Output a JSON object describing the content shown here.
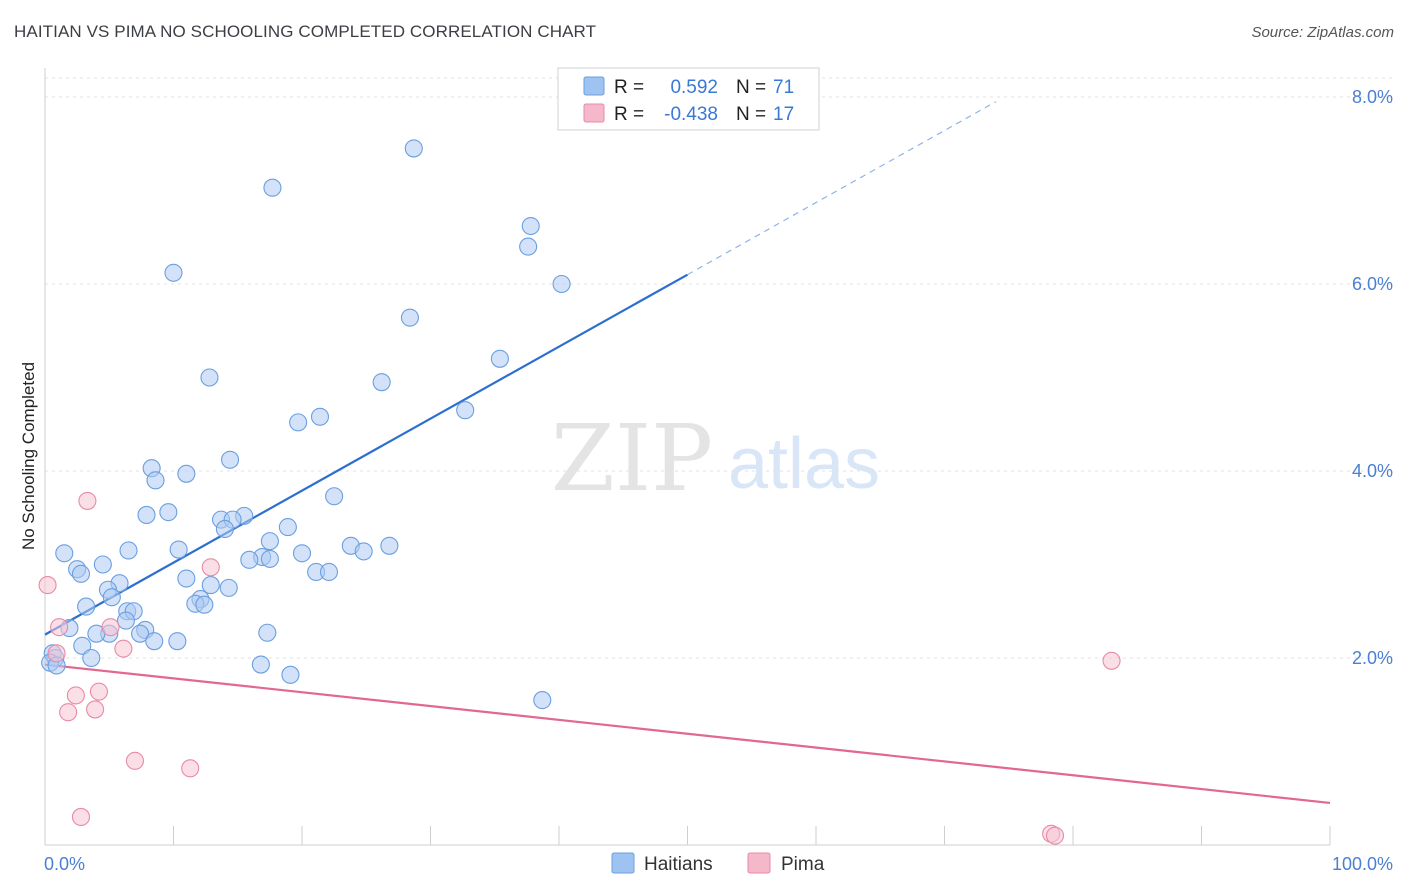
{
  "header": {
    "title": "HAITIAN VS PIMA NO SCHOOLING COMPLETED CORRELATION CHART",
    "source": "Source: ZipAtlas.com"
  },
  "watermark": {
    "zip": "ZIP",
    "atlas": "atlas"
  },
  "legend": {
    "rows": [
      {
        "r_label": "R =",
        "r_value": "0.592",
        "n_label": "N =",
        "n_value": "71",
        "color": "#9fc3f0"
      },
      {
        "r_label": "R =",
        "r_value": "-0.438",
        "n_label": "N =",
        "n_value": "17",
        "color": "#f5b8cb"
      }
    ]
  },
  "chart_data": {
    "type": "scatter",
    "title": "HAITIAN VS PIMA NO SCHOOLING COMPLETED CORRELATION CHART",
    "xlabel": "",
    "ylabel": "No Schooling Completed",
    "xlim": [
      0,
      100
    ],
    "ylim": [
      0,
      8
    ],
    "x_tick_labels": [
      "0.0%",
      "100.0%"
    ],
    "y_ticks": [
      2,
      4,
      6,
      8
    ],
    "y_tick_labels": [
      "2.0%",
      "4.0%",
      "6.0%",
      "8.0%"
    ],
    "grid": true,
    "legend_position": "bottom-center",
    "series": [
      {
        "name": "Haitians",
        "color": "#6a9fe0",
        "fill": "#aecbf2",
        "trend": {
          "x0": 0,
          "y0": 2.25,
          "x1": 50,
          "y1": 6.1,
          "dashed_to_x": 74,
          "dashed_to_y": 7.95,
          "color": "#2d6fcf"
        },
        "points": [
          [
            28.7,
            7.45
          ],
          [
            17.7,
            7.03
          ],
          [
            37.8,
            6.62
          ],
          [
            37.6,
            6.4
          ],
          [
            40.2,
            6.0
          ],
          [
            10.0,
            6.12
          ],
          [
            28.4,
            5.64
          ],
          [
            35.4,
            5.2
          ],
          [
            12.8,
            5.0
          ],
          [
            26.2,
            4.95
          ],
          [
            32.7,
            4.65
          ],
          [
            21.4,
            4.58
          ],
          [
            19.7,
            4.52
          ],
          [
            14.4,
            4.12
          ],
          [
            8.3,
            4.03
          ],
          [
            11.0,
            3.97
          ],
          [
            8.6,
            3.9
          ],
          [
            22.5,
            3.73
          ],
          [
            9.6,
            3.56
          ],
          [
            7.9,
            3.53
          ],
          [
            15.5,
            3.52
          ],
          [
            13.7,
            3.48
          ],
          [
            14.6,
            3.48
          ],
          [
            23.8,
            3.2
          ],
          [
            18.9,
            3.4
          ],
          [
            14.0,
            3.38
          ],
          [
            26.8,
            3.2
          ],
          [
            17.5,
            3.25
          ],
          [
            20.0,
            3.12
          ],
          [
            24.8,
            3.14
          ],
          [
            1.5,
            3.12
          ],
          [
            10.4,
            3.16
          ],
          [
            6.5,
            3.15
          ],
          [
            16.9,
            3.08
          ],
          [
            15.9,
            3.05
          ],
          [
            17.5,
            3.06
          ],
          [
            4.5,
            3.0
          ],
          [
            2.5,
            2.95
          ],
          [
            2.8,
            2.9
          ],
          [
            21.1,
            2.92
          ],
          [
            22.1,
            2.92
          ],
          [
            11.0,
            2.85
          ],
          [
            5.8,
            2.8
          ],
          [
            12.9,
            2.78
          ],
          [
            14.3,
            2.75
          ],
          [
            4.9,
            2.73
          ],
          [
            12.1,
            2.63
          ],
          [
            5.2,
            2.65
          ],
          [
            11.7,
            2.58
          ],
          [
            12.4,
            2.57
          ],
          [
            3.2,
            2.55
          ],
          [
            6.4,
            2.5
          ],
          [
            6.9,
            2.5
          ],
          [
            6.3,
            2.4
          ],
          [
            1.9,
            2.32
          ],
          [
            7.8,
            2.3
          ],
          [
            7.4,
            2.26
          ],
          [
            5.0,
            2.26
          ],
          [
            4.0,
            2.26
          ],
          [
            17.3,
            2.27
          ],
          [
            10.3,
            2.18
          ],
          [
            8.5,
            2.18
          ],
          [
            2.9,
            2.13
          ],
          [
            0.6,
            2.05
          ],
          [
            0.8,
            2.0
          ],
          [
            3.6,
            2.0
          ],
          [
            0.4,
            1.95
          ],
          [
            0.9,
            1.92
          ],
          [
            16.8,
            1.93
          ],
          [
            19.1,
            1.82
          ],
          [
            38.7,
            1.55
          ]
        ]
      },
      {
        "name": "Pima",
        "color": "#e88aa8",
        "fill": "#f7c4d4",
        "trend": {
          "x0": 0,
          "y0": 1.93,
          "x1": 100,
          "y1": 0.45,
          "color": "#e2688f"
        },
        "points": [
          [
            3.3,
            3.68
          ],
          [
            12.9,
            2.97
          ],
          [
            0.2,
            2.78
          ],
          [
            1.1,
            2.33
          ],
          [
            5.1,
            2.33
          ],
          [
            6.1,
            2.1
          ],
          [
            0.9,
            2.05
          ],
          [
            83.0,
            1.97
          ],
          [
            4.2,
            1.64
          ],
          [
            2.4,
            1.6
          ],
          [
            1.8,
            1.42
          ],
          [
            3.9,
            1.45
          ],
          [
            7.0,
            0.9
          ],
          [
            11.3,
            0.82
          ],
          [
            2.8,
            0.3
          ],
          [
            78.3,
            0.12
          ],
          [
            78.6,
            0.1
          ]
        ]
      }
    ]
  }
}
